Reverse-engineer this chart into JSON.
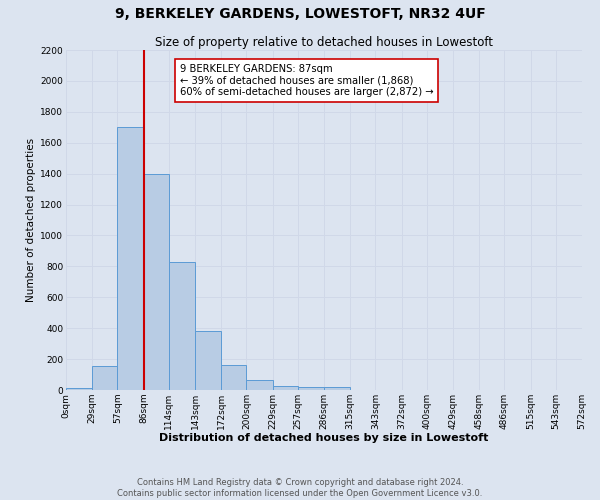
{
  "title": "9, BERKELEY GARDENS, LOWESTOFT, NR32 4UF",
  "subtitle": "Size of property relative to detached houses in Lowestoft",
  "xlabel": "Distribution of detached houses by size in Lowestoft",
  "ylabel": "Number of detached properties",
  "bin_edges": [
    0,
    29,
    57,
    86,
    114,
    143,
    172,
    200,
    229,
    257,
    286,
    315,
    343,
    372,
    400,
    429,
    458,
    486,
    515,
    543,
    572
  ],
  "bar_heights": [
    10,
    155,
    1700,
    1400,
    830,
    380,
    160,
    65,
    25,
    20,
    20,
    0,
    0,
    0,
    0,
    0,
    0,
    0,
    0,
    0
  ],
  "bar_color": "#b8cce4",
  "bar_edge_color": "#5b9bd5",
  "property_size": 87,
  "property_line_color": "#cc0000",
  "annotation_line1": "9 BERKELEY GARDENS: 87sqm",
  "annotation_line2": "← 39% of detached houses are smaller (1,868)",
  "annotation_line3": "60% of semi-detached houses are larger (2,872) →",
  "annotation_box_edge_color": "#cc0000",
  "annotation_box_face_color": "#ffffff",
  "xlim_left": 0,
  "xlim_right": 572,
  "ylim_top": 2200,
  "ylim_bottom": 0,
  "yticks": [
    0,
    200,
    400,
    600,
    800,
    1000,
    1200,
    1400,
    1600,
    1800,
    2000,
    2200
  ],
  "xtick_labels": [
    "0sqm",
    "29sqm",
    "57sqm",
    "86sqm",
    "114sqm",
    "143sqm",
    "172sqm",
    "200sqm",
    "229sqm",
    "257sqm",
    "286sqm",
    "315sqm",
    "343sqm",
    "372sqm",
    "400sqm",
    "429sqm",
    "458sqm",
    "486sqm",
    "515sqm",
    "543sqm",
    "572sqm"
  ],
  "xtick_positions": [
    0,
    29,
    57,
    86,
    114,
    143,
    172,
    200,
    229,
    257,
    286,
    315,
    343,
    372,
    400,
    429,
    458,
    486,
    515,
    543,
    572
  ],
  "footer_text": "Contains HM Land Registry data © Crown copyright and database right 2024.\nContains public sector information licensed under the Open Government Licence v3.0.",
  "grid_color": "#d0d8e8",
  "bg_color": "#dce4f0",
  "title_fontsize": 10,
  "subtitle_fontsize": 8.5,
  "xlabel_fontsize": 8,
  "ylabel_fontsize": 7.5,
  "tick_fontsize": 6.5,
  "footer_fontsize": 6,
  "footer_color": "#555555"
}
